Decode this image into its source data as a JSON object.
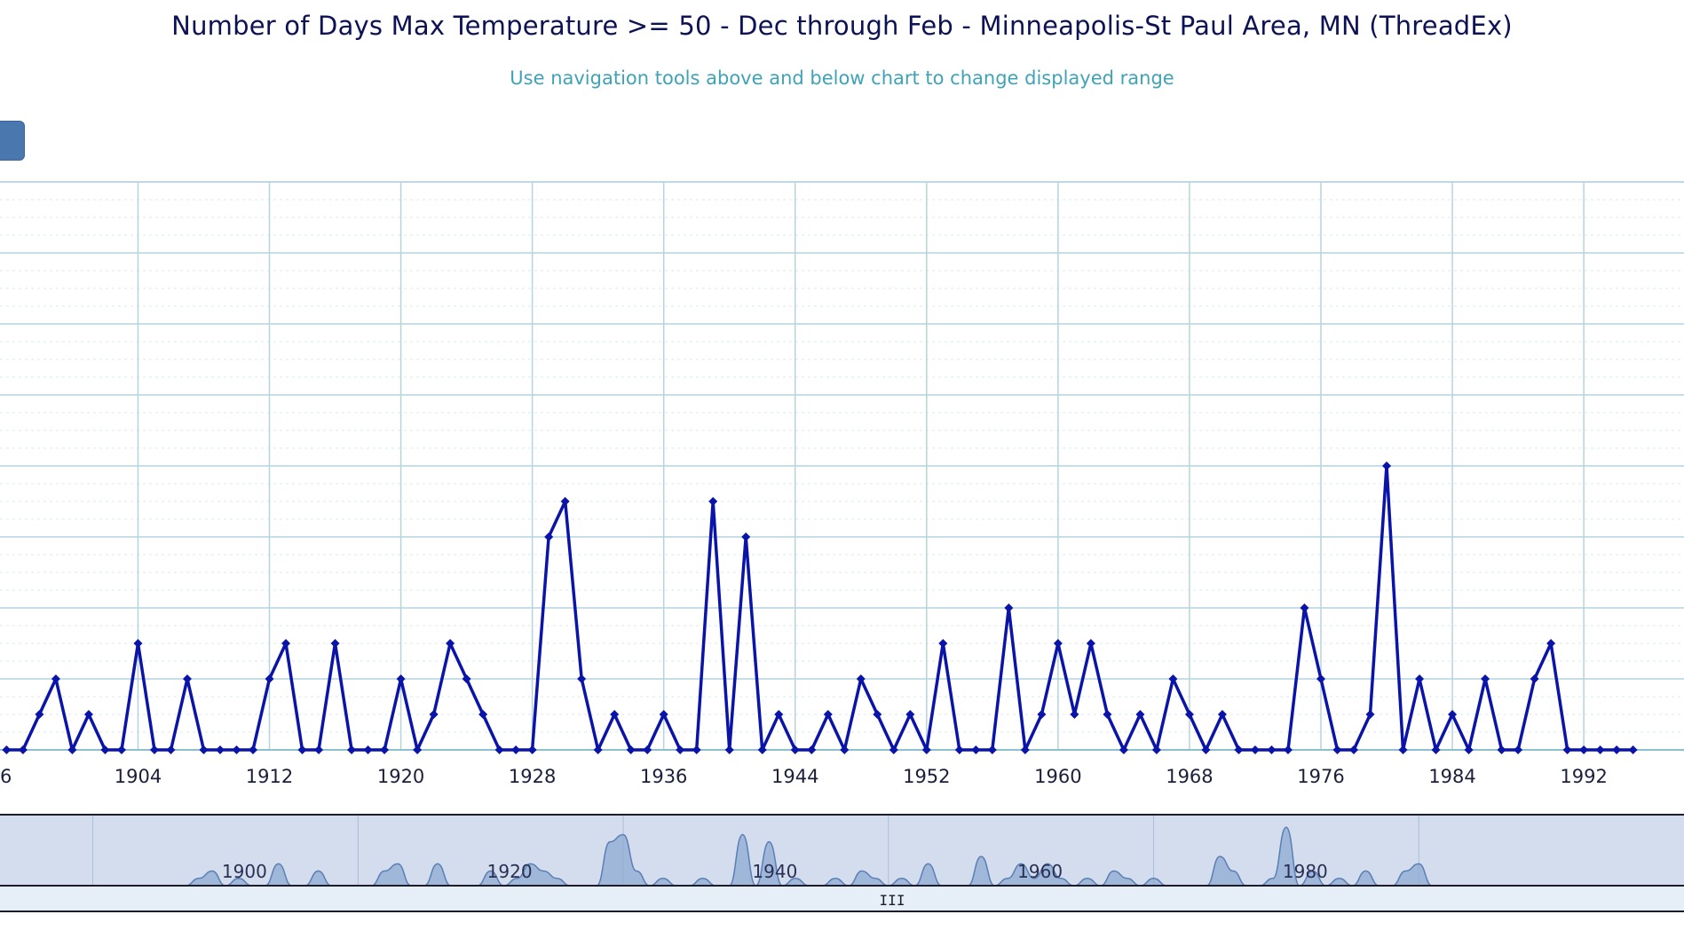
{
  "header": {
    "title": "Number of Days Max Temperature >= 50 - Dec through Feb - Minneapolis-St Paul Area, MN (ThreadEx)",
    "subtitle": "Use navigation tools above and below chart to change displayed range"
  },
  "colors": {
    "series": "#0b14a8",
    "grid_major": "#b6d4de",
    "grid_minor": "#dbe8ee",
    "navigator_fill": "#8ea9d2",
    "navigator_bg": "#d4dded",
    "navigator_line": "#5b7fb4",
    "scrollbar_bg": "#e6eef8",
    "title": "#0d1254",
    "subtitle": "#3fa3b8",
    "range_button": "#4a77ad"
  },
  "chart_data": {
    "type": "line",
    "title": "Number of Days Max Temperature >= 50 - Dec through Feb - Minneapolis-St Paul Area, MN (ThreadEx)",
    "subtitle": "Use navigation tools above and below chart to change displayed range",
    "xlabel": "",
    "ylabel": "",
    "xlim": [
      1895.6,
      1998.1
    ],
    "ylim": [
      0,
      16
    ],
    "y_scale_note": "",
    "grid": true,
    "x_ticks": [
      1904,
      1912,
      1920,
      1928,
      1936,
      1944,
      1952,
      1960,
      1968,
      1976,
      1984,
      1992
    ],
    "x_tick_labels": [
      "1904",
      "1912",
      "1920",
      "1928",
      "1936",
      "1944",
      "1952",
      "1960",
      "1968",
      "1976",
      "1984",
      "1992"
    ],
    "x_tick_label_partial": "6",
    "series": [
      {
        "name": "",
        "x": [
          1896,
          1897,
          1898,
          1899,
          1900,
          1901,
          1902,
          1903,
          1904,
          1905,
          1906,
          1907,
          1908,
          1909,
          1910,
          1911,
          1912,
          1913,
          1914,
          1915,
          1916,
          1917,
          1918,
          1919,
          1920,
          1921,
          1922,
          1923,
          1924,
          1925,
          1926,
          1927,
          1928,
          1929,
          1930,
          1931,
          1932,
          1933,
          1934,
          1935,
          1936,
          1937,
          1938,
          1939,
          1940,
          1941,
          1942,
          1943,
          1944,
          1945,
          1946,
          1947,
          1948,
          1949,
          1950,
          1951,
          1952,
          1953,
          1954,
          1955,
          1956,
          1957,
          1958,
          1959,
          1960,
          1961,
          1962,
          1963,
          1964,
          1965,
          1966,
          1967,
          1968,
          1969,
          1970,
          1971,
          1972,
          1973,
          1974,
          1975,
          1976,
          1977,
          1978,
          1979,
          1980,
          1981,
          1982,
          1983,
          1984,
          1985,
          1986,
          1987,
          1988,
          1989,
          1990,
          1991,
          1992,
          1993,
          1994,
          1995
        ],
        "values": [
          0,
          0,
          1,
          2,
          0,
          1,
          0,
          0,
          3,
          0,
          0,
          2,
          0,
          0,
          0,
          0,
          2,
          3,
          0,
          0,
          3,
          0,
          0,
          0,
          2,
          0,
          1,
          3,
          2,
          1,
          0,
          0,
          0,
          6,
          7,
          2,
          0,
          1,
          0,
          0,
          1,
          0,
          0,
          7,
          0,
          6,
          0,
          1,
          0,
          0,
          1,
          0,
          2,
          1,
          0,
          1,
          0,
          3,
          0,
          0,
          0,
          4,
          0,
          1,
          3,
          1,
          3,
          1,
          0,
          1,
          0,
          2,
          1,
          0,
          1,
          0,
          0,
          0,
          0,
          4,
          2,
          0,
          0,
          1,
          8,
          0,
          2,
          0,
          1,
          0,
          2,
          0,
          0,
          2,
          3,
          0,
          0,
          0,
          0,
          0
        ]
      }
    ],
    "navigator": {
      "x_tick_labels": [
        "1900",
        "1920",
        "1940",
        "1960",
        "1980"
      ],
      "scrollbar_grip": "III"
    }
  }
}
